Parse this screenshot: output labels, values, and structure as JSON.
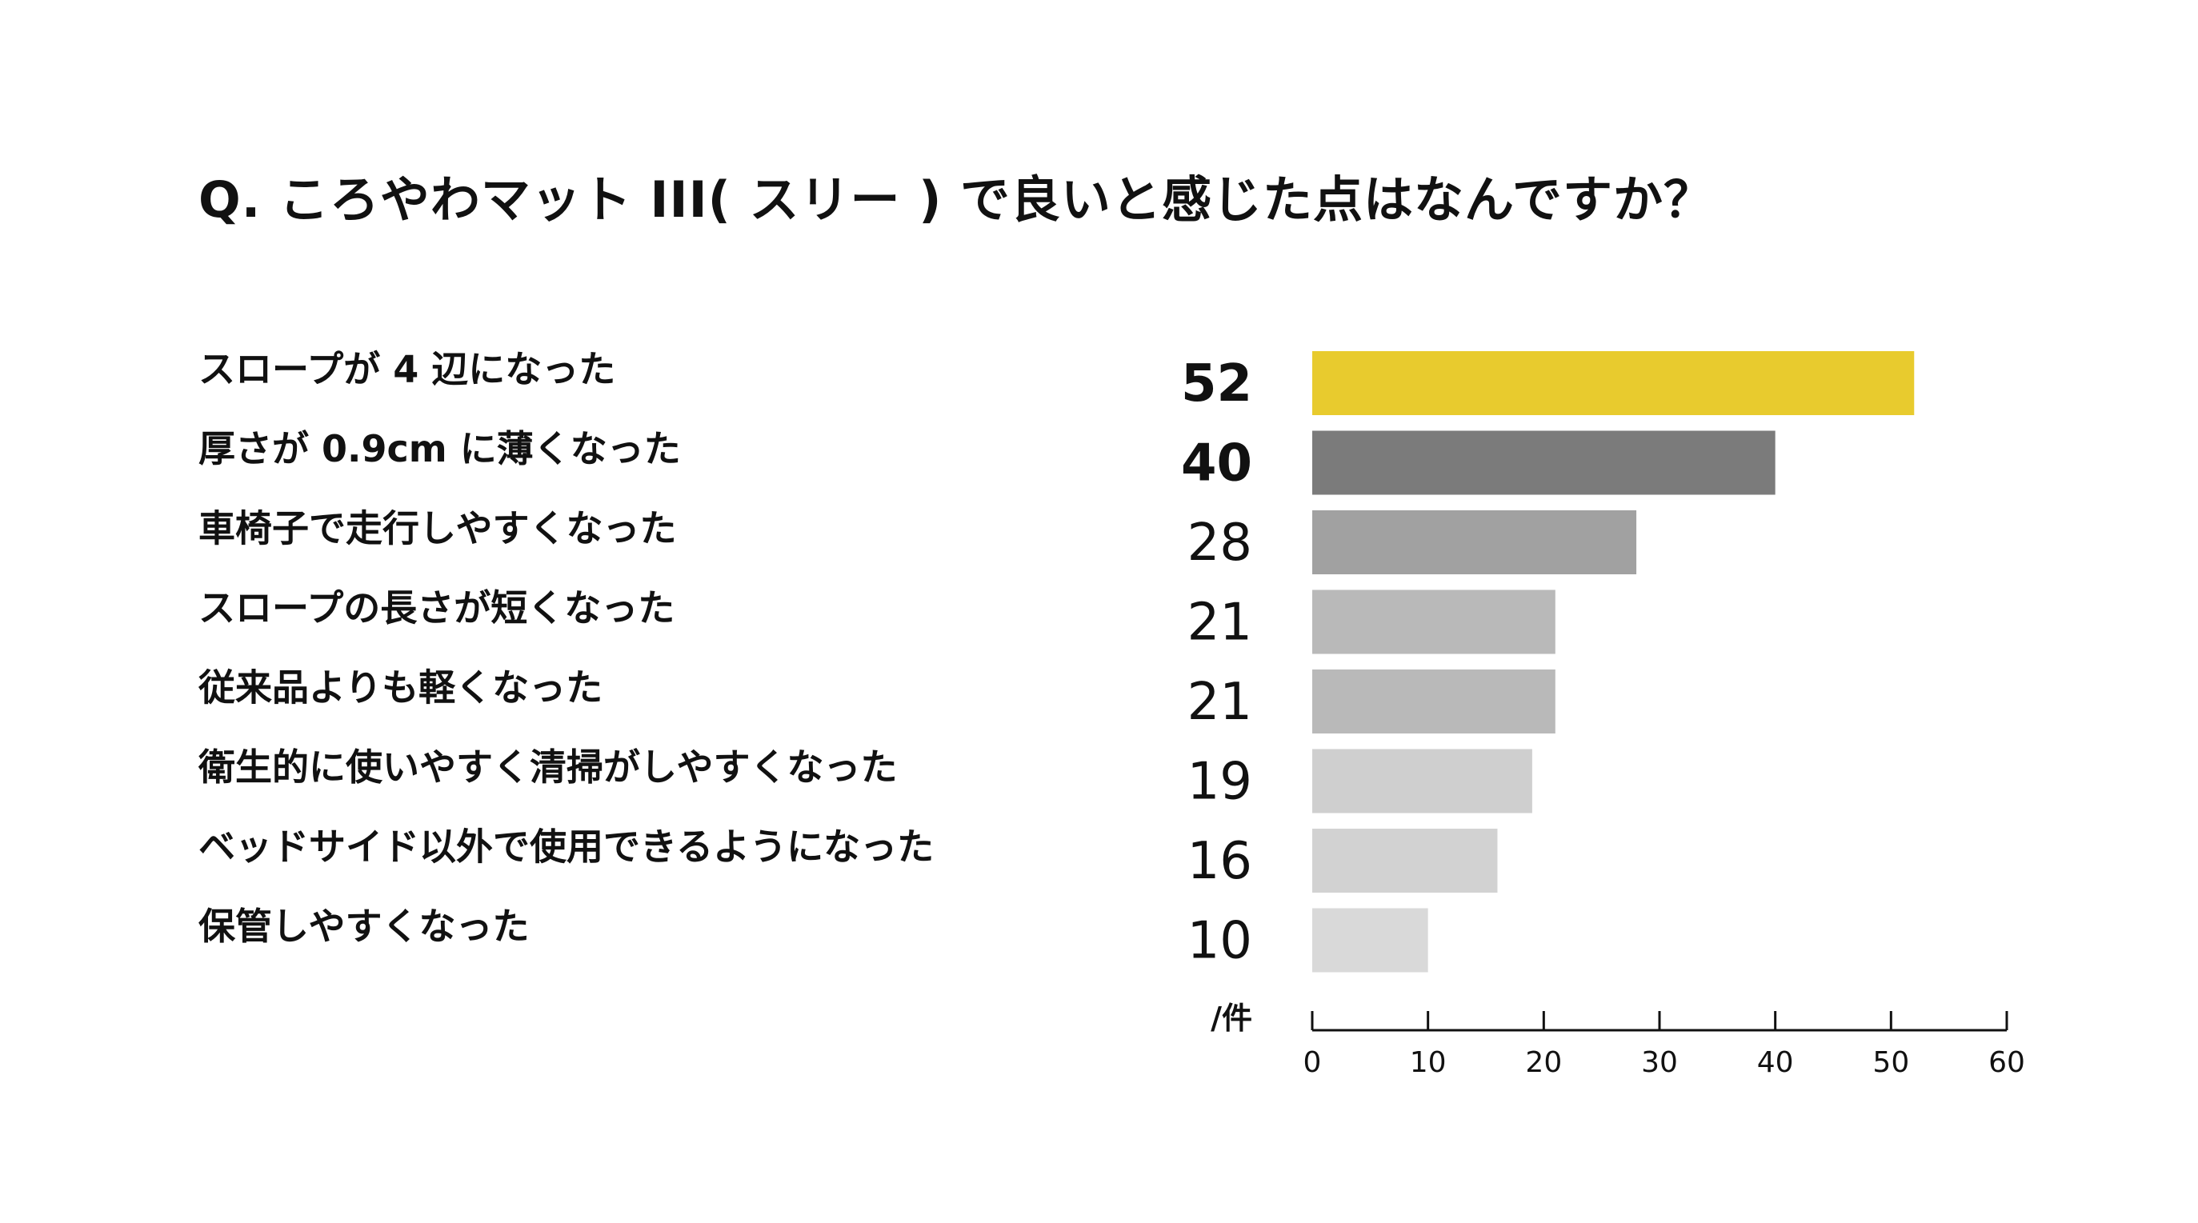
{
  "title": "Q. ころやわマット III( スリー ) で良いと感じた点はなんですか？",
  "chart_data": {
    "type": "bar",
    "orientation": "horizontal",
    "title": "Q. ころやわマット III( スリー ) で良いと感じた点はなんですか？",
    "categories": [
      "スロープが 4 辺になった",
      "厚さが 0.9cm に薄くなった",
      "車椅子で走行しやすくなった",
      "スロープの長さが短くなった",
      "従来品よりも軽くなった",
      "衛生的に使いやすく清掃がしやすくなった",
      "ベッドサイド以外で使用できるようになった",
      "保管しやすくなった"
    ],
    "values": [
      52,
      40,
      28,
      21,
      21,
      19,
      16,
      10
    ],
    "value_labels": [
      "52",
      "40",
      "28",
      "21",
      "21",
      "19",
      "16",
      "10"
    ],
    "bar_colors": [
      "#e8cb2e",
      "#7b7b7b",
      "#a1a1a1",
      "#b9b9b9",
      "#b9b9b9",
      "#cfcfcf",
      "#d2d2d2",
      "#d9d9d9"
    ],
    "unit_label": "/件",
    "xlim": [
      0,
      60
    ],
    "xticks": [
      0,
      10,
      20,
      30,
      40,
      50,
      60
    ],
    "xtick_labels": [
      "0",
      "10",
      "20",
      "30",
      "40",
      "50",
      "60"
    ],
    "grid": false,
    "legend": "none"
  }
}
